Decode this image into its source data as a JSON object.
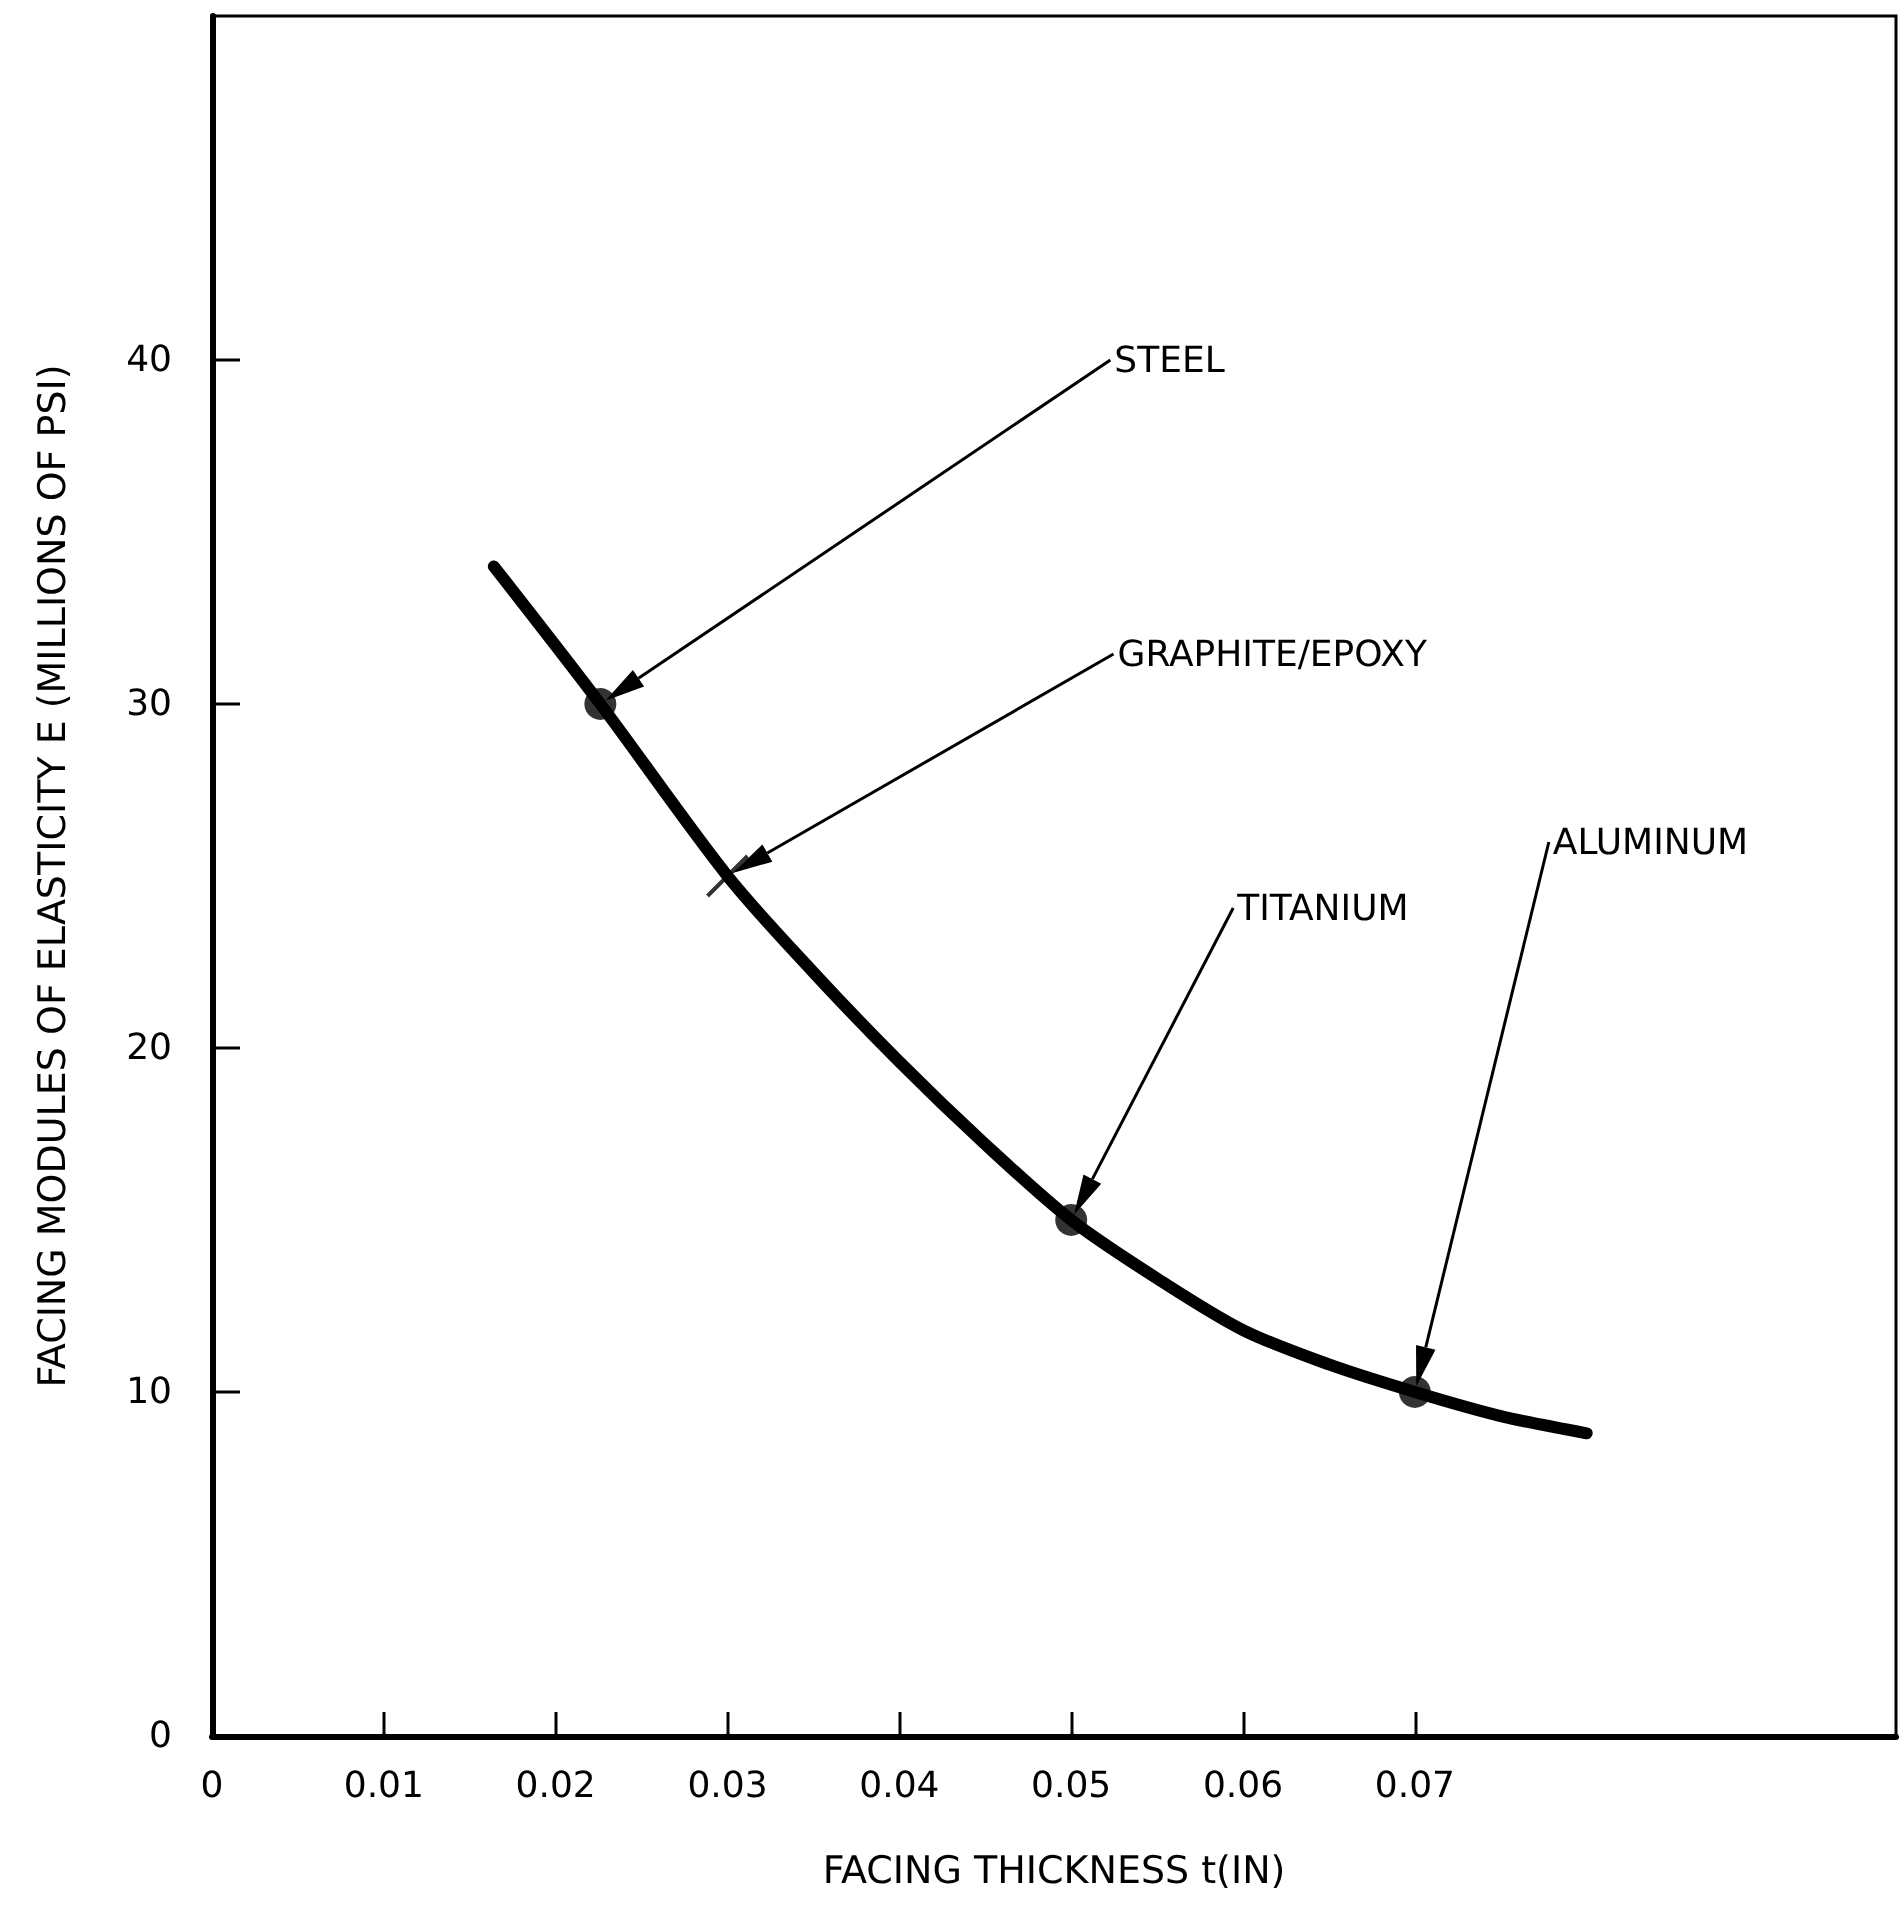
{
  "chart_data": {
    "type": "line",
    "xlabel": "FACING THICKNESS t(IN)",
    "ylabel": "FACING MODULES OF ELASTICITY E (MILLIONS OF PSI)",
    "xlim": [
      0,
      0.098
    ],
    "xticks": [
      0,
      0.01,
      0.02,
      0.03,
      0.04,
      0.05,
      0.06,
      0.07
    ],
    "ylim": [
      0,
      50
    ],
    "yticks": [
      0,
      10,
      20,
      30,
      40
    ],
    "grid": false,
    "series": [
      {
        "type": "line",
        "color": "#000000",
        "marker": "none",
        "line_style": "solid",
        "x": [
          0.0164,
          0.0226,
          0.03,
          0.035,
          0.04,
          0.045,
          0.05,
          0.055,
          0.06,
          0.065,
          0.07,
          0.075,
          0.08
        ],
        "values": [
          34,
          30,
          25,
          22.2,
          19.6,
          17.2,
          15,
          13.3,
          11.8,
          10.8,
          10,
          9.3,
          8.8
        ]
      },
      {
        "type": "scatter",
        "color": "#000000",
        "marker": "circle",
        "x": [
          0.0226,
          0.05,
          0.07
        ],
        "values": [
          30,
          15,
          10
        ]
      },
      {
        "type": "scatter",
        "color": "#000000",
        "marker": "cross",
        "x": [
          0.03
        ],
        "values": [
          25
        ]
      }
    ],
    "annotations": [
      "STEEL",
      "GRAPHITE/EPOXY",
      "TITANIUM",
      "ALUMINUM"
    ]
  }
}
